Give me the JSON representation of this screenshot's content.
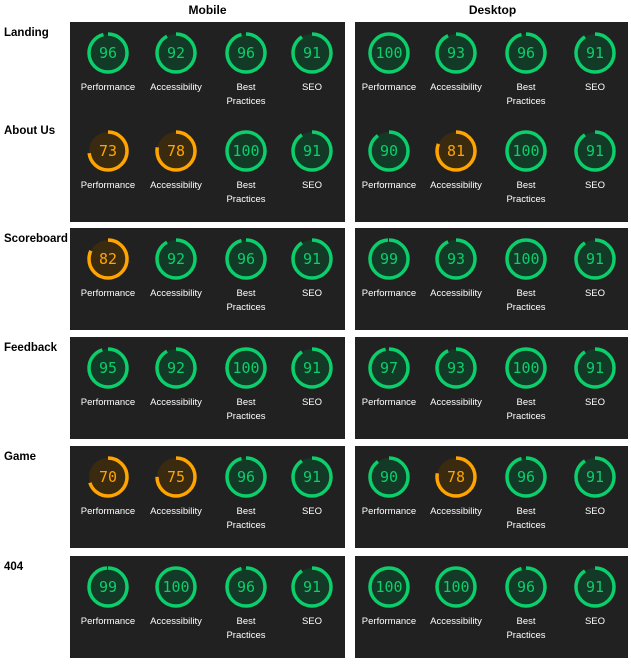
{
  "headers": {
    "mobile": "Mobile",
    "desktop": "Desktop"
  },
  "colors": {
    "panel_bg": "#212121",
    "green": "#0cce6b",
    "green_fill": "#123a26",
    "orange": "#ffa400",
    "orange_fill": "#3a2b10",
    "label": "#ffffff"
  },
  "categories": [
    "Performance",
    "Accessibility",
    "Best Practices",
    "SEO"
  ],
  "rows": [
    {
      "name": "Landing",
      "mobile": [
        96,
        92,
        96,
        91
      ],
      "desktop": [
        100,
        93,
        96,
        91
      ]
    },
    {
      "name": "About Us",
      "mobile": [
        73,
        78,
        100,
        91
      ],
      "desktop": [
        90,
        81,
        100,
        91
      ]
    },
    {
      "name": "Scoreboard",
      "mobile": [
        82,
        92,
        96,
        91
      ],
      "desktop": [
        99,
        93,
        100,
        91
      ]
    },
    {
      "name": "Feedback",
      "mobile": [
        95,
        92,
        100,
        91
      ],
      "desktop": [
        97,
        93,
        100,
        91
      ]
    },
    {
      "name": "Game",
      "mobile": [
        70,
        75,
        96,
        91
      ],
      "desktop": [
        90,
        78,
        96,
        91
      ]
    },
    {
      "name": "404",
      "mobile": [
        99,
        100,
        96,
        91
      ],
      "desktop": [
        100,
        100,
        96,
        91
      ]
    }
  ]
}
